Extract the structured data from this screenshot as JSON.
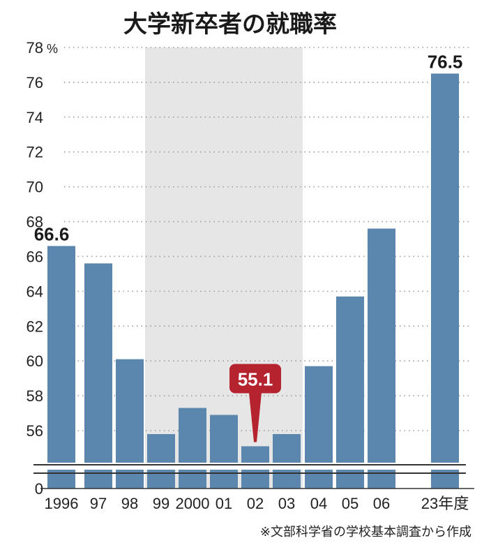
{
  "chart_data": {
    "type": "bar",
    "title": "大学新卒者の就職率",
    "source": "※文部科学省の学校基本調査から作成",
    "y_unit": "%",
    "x_unit": "年度",
    "categories": [
      "1996",
      "97",
      "98",
      "99",
      "2000",
      "01",
      "02",
      "03",
      "04",
      "05",
      "06",
      "23"
    ],
    "values": [
      66.6,
      65.6,
      60.1,
      55.8,
      57.3,
      56.9,
      55.1,
      55.8,
      59.7,
      63.7,
      67.6,
      76.5
    ],
    "ylim": [
      55,
      78
    ],
    "y_ticks": [
      56,
      58,
      60,
      62,
      64,
      66,
      68,
      70,
      72,
      74,
      76,
      78
    ],
    "y_break": true,
    "y_zero_label": "0",
    "data_labels": [
      {
        "category": "1996",
        "text": "66.6"
      },
      {
        "category": "02",
        "text": "55.1",
        "highlight": true
      },
      {
        "category": "23",
        "text": "76.5"
      }
    ],
    "shaded_range": [
      "99",
      "03"
    ],
    "grid": "horizontal-dotted",
    "colors": {
      "bar": "#5b86ad",
      "highlight": "#b5232f",
      "shade": "#e6e6e6"
    }
  }
}
